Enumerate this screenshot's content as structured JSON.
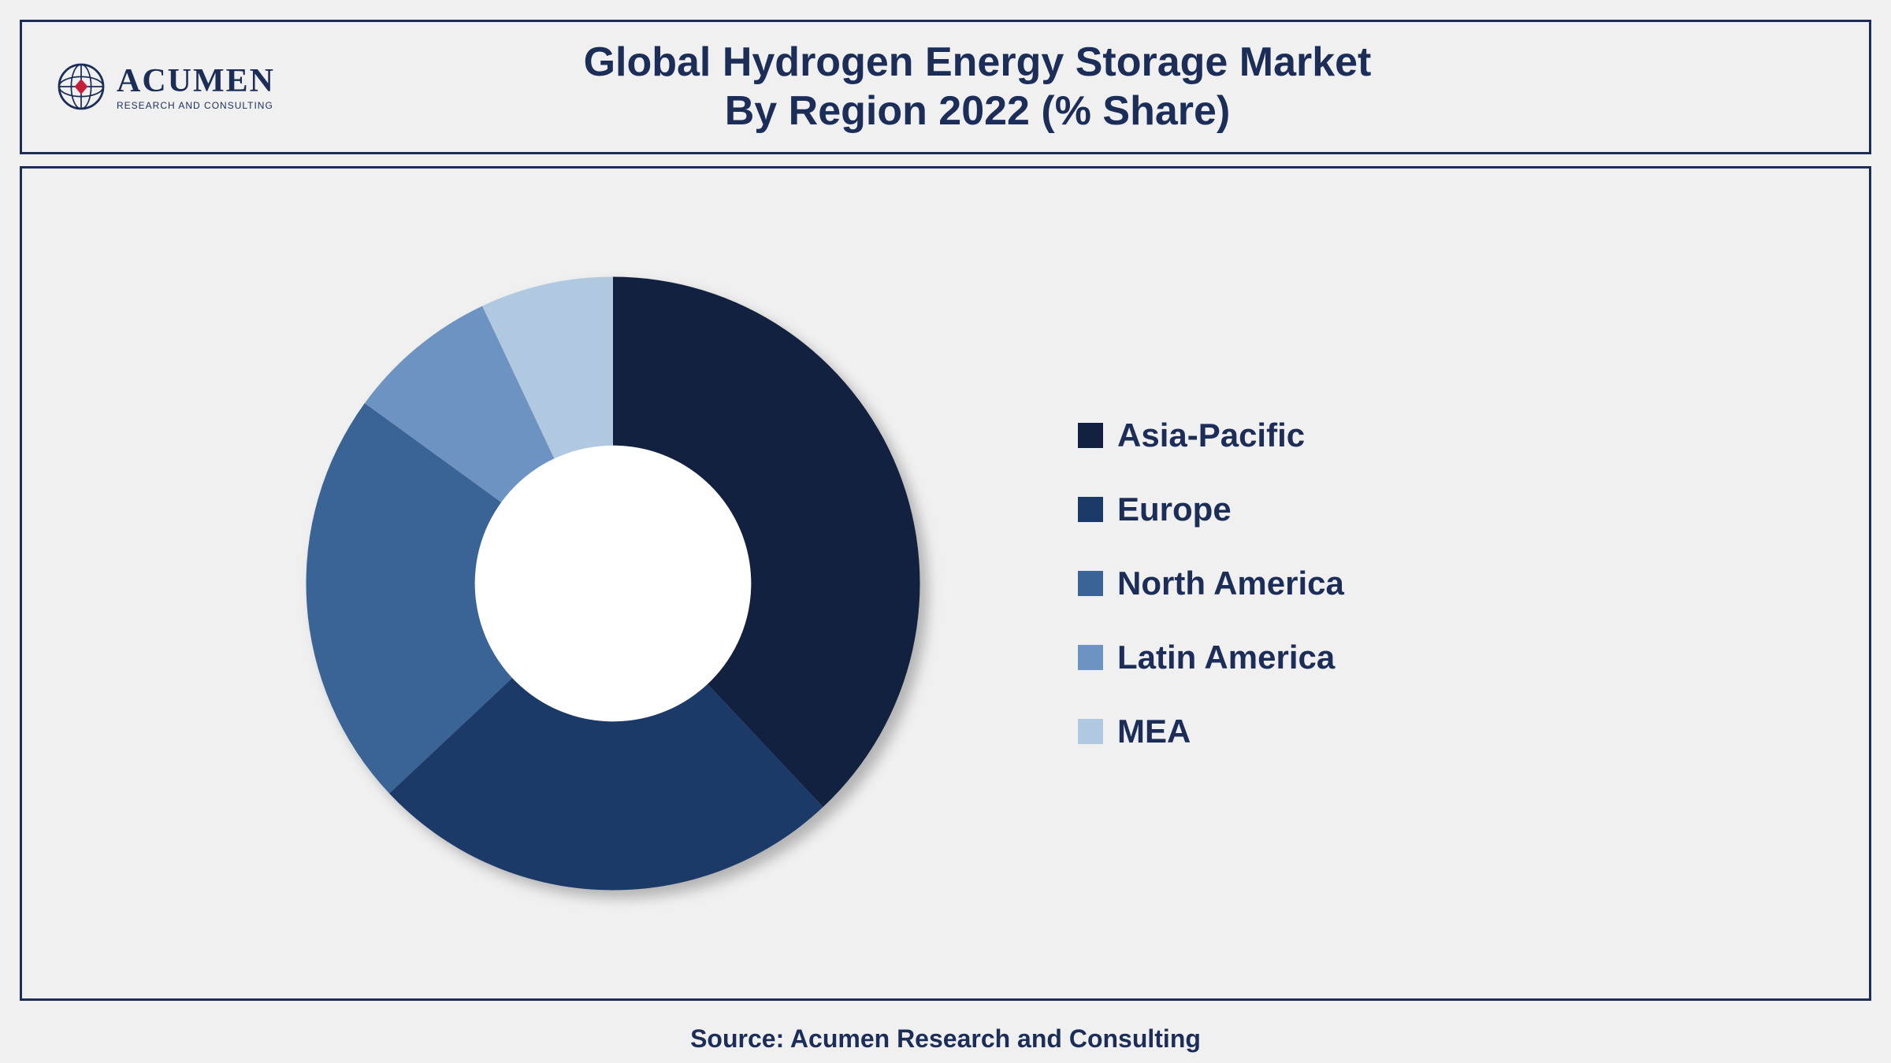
{
  "header": {
    "logo_main": "ACUMEN",
    "logo_sub": "RESEARCH AND CONSULTING",
    "title_line1": "Global Hydrogen Energy Storage Market",
    "title_line2": "By Region 2022 (% Share)"
  },
  "chart": {
    "type": "donut",
    "inner_radius_ratio": 0.45,
    "background_color": "#f0f0f0",
    "border_color": "#1c2e58",
    "slices": [
      {
        "label": "Asia-Pacific",
        "value": 38,
        "color": "#12213f"
      },
      {
        "label": "Europe",
        "value": 25,
        "color": "#1c3a68"
      },
      {
        "label": "North America",
        "value": 22,
        "color": "#3a6496"
      },
      {
        "label": "Latin America",
        "value": 8,
        "color": "#6c93c2"
      },
      {
        "label": "MEA",
        "value": 7,
        "color": "#b0c8e0"
      }
    ],
    "legend_font_size": 42,
    "legend_font_weight": "bold",
    "legend_text_color": "#1c2e58"
  },
  "source": "Source: Acumen Research and Consulting"
}
